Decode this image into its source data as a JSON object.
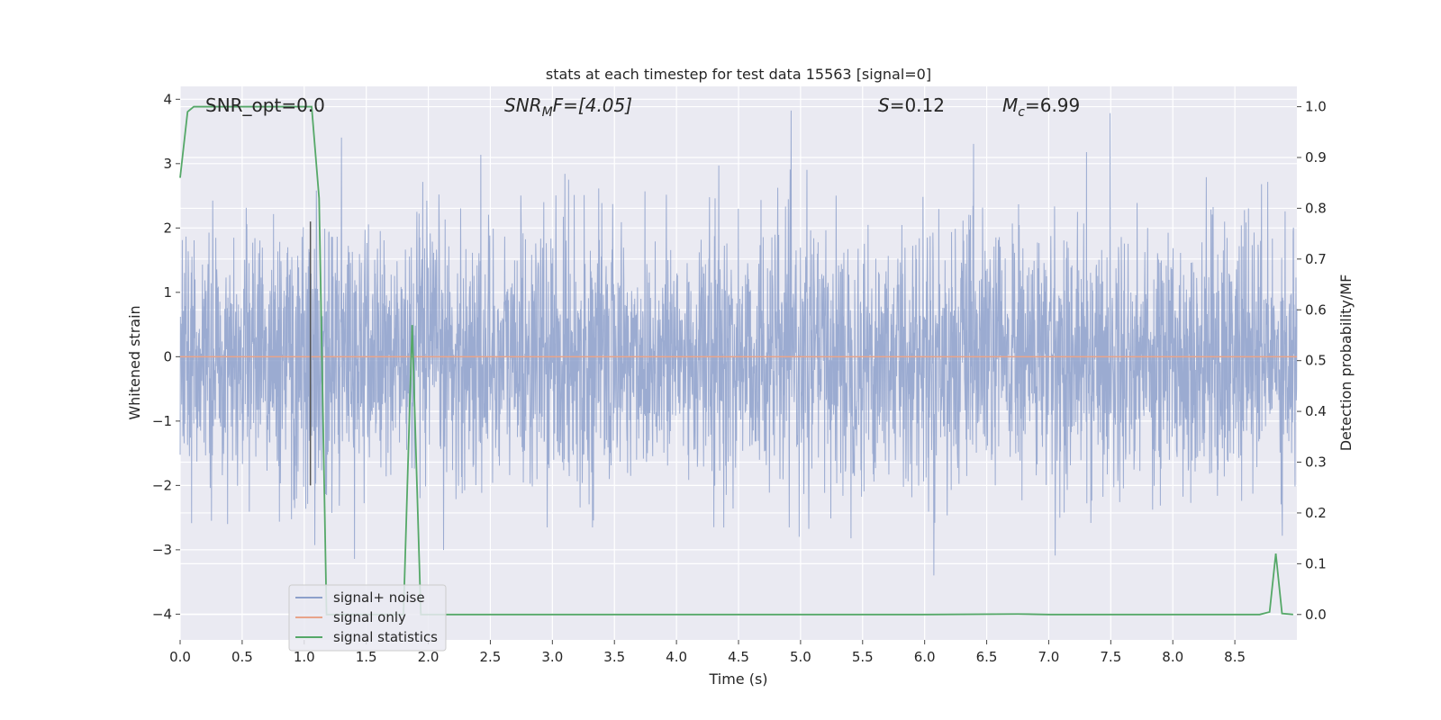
{
  "chart_data": {
    "type": "line",
    "title": "stats at each timestep for test data 15563 [signal=0]",
    "xlabel": "Time (s)",
    "ylabel": "Whitened strain",
    "ylabel_right": "Detection probability/MF",
    "xlim": [
      0.0,
      9.0
    ],
    "ylim": [
      -4.4,
      4.2
    ],
    "ylim_right": [
      -0.05,
      1.04
    ],
    "x_ticks": [
      "0.0",
      "0.5",
      "1.0",
      "1.5",
      "2.0",
      "2.5",
      "3.0",
      "3.5",
      "4.0",
      "4.5",
      "5.0",
      "5.5",
      "6.0",
      "6.5",
      "7.0",
      "7.5",
      "8.0",
      "8.5"
    ],
    "y_ticks": [
      "4",
      "3",
      "2",
      "1",
      "0",
      "−1",
      "−2",
      "−3",
      "−4"
    ],
    "y_ticks_right": [
      "1.0",
      "0.9",
      "0.8",
      "0.7",
      "0.6",
      "0.5",
      "0.4",
      "0.3",
      "0.2",
      "0.1",
      "0.0"
    ],
    "grid": true,
    "legend_position": "lower-left",
    "series": [
      {
        "name": "signal+ noise",
        "color": "#8da0cb",
        "description_note_free": true,
        "noise_std": 1.0,
        "noise_envelope": [
          -3.6,
          3.9
        ]
      },
      {
        "name": "signal only",
        "color": "#e8a48a",
        "x": [
          0.0,
          9.0
        ],
        "y": [
          0.0,
          0.0
        ]
      },
      {
        "name": "signal statistics",
        "color": "#55a868",
        "axis": "right",
        "x": [
          0.0,
          0.06,
          0.11,
          0.2,
          0.6,
          1.0,
          1.06,
          1.12,
          1.18,
          1.3,
          1.8,
          1.87,
          1.94,
          2.0,
          6.0,
          6.75,
          7.0,
          8.7,
          8.78,
          8.83,
          8.88,
          8.97
        ],
        "y": [
          0.86,
          0.99,
          1.0,
          1.0,
          1.0,
          1.0,
          1.0,
          0.82,
          0.0,
          0.0,
          0.0,
          0.57,
          0.0,
          0.0,
          0.0,
          0.001,
          0.0,
          0.0,
          0.005,
          0.12,
          0.002,
          0.0
        ]
      }
    ],
    "vline_x": 1.05,
    "annotations": {
      "snr_opt": "SNR_opt=0.0",
      "snr_mf_main": "SNR",
      "snr_mf_sub": "M",
      "snr_mf_rest": "F=[4.05]",
      "s_main": "S",
      "s_rest": "=0.12",
      "mc_main": "M",
      "mc_sub": "c",
      "mc_rest": "=6.99"
    },
    "colors": {
      "plot_bg": "#eaeaf2",
      "grid": "#ffffff",
      "vline": "#555555"
    }
  }
}
